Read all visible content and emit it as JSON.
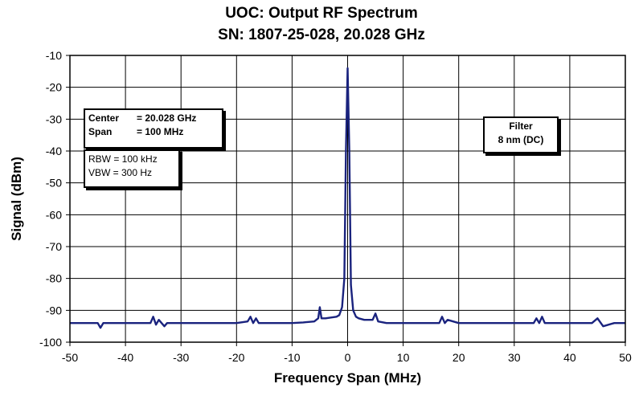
{
  "chart_data": {
    "type": "line",
    "title": "UOC: Output RF Spectrum",
    "subtitle": "SN: 1807-25-028, 20.028 GHz",
    "xlabel": "Frequency Span (MHz)",
    "ylabel": "Signal (dBm)",
    "xlim": [
      -50,
      50
    ],
    "ylim": [
      -100,
      -10
    ],
    "xticks": [
      "-50",
      "-40",
      "-30",
      "-20",
      "-10",
      "0",
      "10",
      "20",
      "30",
      "40",
      "50"
    ],
    "yticks": [
      "-10",
      "-20",
      "-30",
      "-40",
      "-50",
      "-60",
      "-70",
      "-80",
      "-90",
      "-100"
    ],
    "grid": true,
    "line_color": "#1a237e",
    "series": [
      {
        "x": [
          -50,
          -45,
          -44.5,
          -44,
          -40,
          -35.5,
          -35,
          -34.5,
          -34,
          -33,
          -32.5,
          -30,
          -25,
          -20,
          -18,
          -17.5,
          -17,
          -16.5,
          -16,
          -12,
          -10,
          -8,
          -6,
          -5.3,
          -5,
          -4.7,
          -4,
          -2,
          -1.5,
          -1,
          -0.6,
          -0.3,
          0,
          0.3,
          0.6,
          1,
          1.5,
          2,
          3,
          4.5,
          5,
          5.5,
          7,
          10,
          15,
          16.5,
          17,
          17.5,
          18,
          20,
          25,
          30,
          33.5,
          34,
          34.5,
          35,
          35.5,
          40,
          44,
          45,
          46,
          48,
          50
        ],
        "y": [
          -94,
          -94,
          -95.5,
          -94,
          -94,
          -94,
          -92,
          -94.5,
          -93,
          -95,
          -94,
          -94,
          -94,
          -94,
          -93.5,
          -92,
          -94,
          -92.5,
          -94,
          -94,
          -94,
          -93.8,
          -93.5,
          -92.5,
          -89,
          -92.5,
          -92.5,
          -92,
          -91.5,
          -89,
          -80,
          -40,
          -14,
          -40,
          -82,
          -90,
          -92,
          -92.5,
          -93,
          -93,
          -91,
          -93.5,
          -94,
          -94,
          -94,
          -94,
          -92,
          -94,
          -93,
          -94,
          -94,
          -94,
          -94,
          -92.5,
          -94,
          -92,
          -94,
          -94,
          -94,
          -92.5,
          -95,
          -94,
          -94
        ]
      }
    ]
  },
  "annotations": {
    "center_label": "Center",
    "center_value": "= 20.028 GHz",
    "span_label": "Span",
    "span_value": "= 100 MHz",
    "rbw": "RBW = 100 kHz",
    "vbw": "VBW = 300 Hz",
    "filter_line1": "Filter",
    "filter_line2": "8 nm (DC)"
  }
}
